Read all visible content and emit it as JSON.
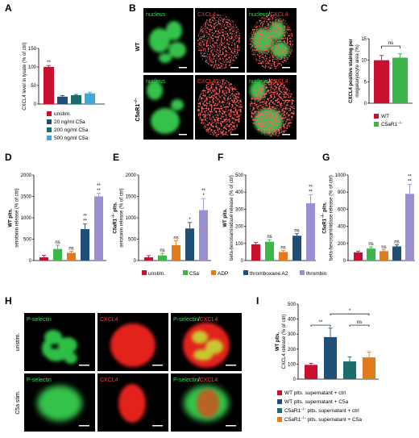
{
  "colors": {
    "unstim": "#c8102e",
    "c5a": "#3cb54a",
    "adp": "#e07b1f",
    "thromboxane": "#1f4e79",
    "thrombin": "#9a8fd0",
    "dose20": "#1f4e79",
    "dose200": "#1b6d6d",
    "dose500": "#40a8d8",
    "micro_green": "#33c14a",
    "micro_red": "#e8262a",
    "micro_label_green": "#33dd55",
    "micro_label_red": "#ff3b30"
  },
  "panels": {
    "A": "A",
    "B": "B",
    "C": "C",
    "D": "D",
    "E": "E",
    "F": "F",
    "G": "G",
    "H": "H",
    "I": "I"
  },
  "micrograph_b": {
    "col_labels": [
      "nucleus",
      "CXCL4",
      "nucleus",
      "/",
      "CXCL4"
    ],
    "row_labels": [
      "WT",
      "C5aR1",
      "−/−"
    ]
  },
  "micrograph_h": {
    "col_labels": [
      "P-selectin",
      "CXCL4",
      "P-selectin",
      "/",
      "CXCL4"
    ],
    "row_labels": [
      "unstim.",
      "C5a stim."
    ]
  },
  "legend_D_G": [
    "unstim.",
    "C5a",
    "ADP",
    "thromboxane A2",
    "thrombin"
  ],
  "chart_data": [
    {
      "panel": "A",
      "type": "bar",
      "categories": [
        "unstim.",
        "20 ng/ml C5a",
        "200 ng/ml C5a",
        "500 ng/ml C5a"
      ],
      "values": [
        100,
        20,
        24,
        29
      ],
      "errors": [
        4,
        3,
        2,
        3
      ],
      "significance": [
        "**",
        "",
        "",
        ""
      ],
      "ylabel": "CXCL4 level in lysate (% of ctrl)",
      "ylim": [
        0,
        150
      ],
      "yticks": [
        0,
        50,
        100,
        150
      ],
      "legend": [
        "unstim.",
        "20 ng/ml C5a",
        "200 ng/ml C5a",
        "500 ng/ml C5a"
      ]
    },
    {
      "panel": "C",
      "type": "bar",
      "categories": [
        "WT",
        "C5aR1"
      ],
      "values": [
        10,
        10.6
      ],
      "errors": [
        1.1,
        0.9
      ],
      "bracket": "ns",
      "ylabel": [
        "CXCL4 positive staining per",
        "megakaryocyte area (%)"
      ],
      "ylim": [
        0,
        15
      ],
      "yticks": [
        0,
        5,
        10,
        15
      ],
      "legend": [
        "WT",
        "C5aR1"
      ]
    },
    {
      "panel": "D",
      "type": "bar",
      "categories": [
        "unstim.",
        "C5a",
        "ADP",
        "thromboxane A2",
        "thrombin"
      ],
      "values": [
        75,
        270,
        180,
        735,
        1500
      ],
      "errors": [
        45,
        90,
        40,
        120,
        70
      ],
      "significance": [
        "",
        "ns",
        "ns",
        "**\n**",
        "**\n**"
      ],
      "ylabel": [
        "WT plts.",
        "serotonin release (% of ctrl)"
      ],
      "ylim": [
        0,
        2000
      ],
      "yticks": [
        0,
        500,
        1000,
        1500,
        2000
      ]
    },
    {
      "panel": "E",
      "type": "bar",
      "categories": [
        "unstim.",
        "C5a",
        "ADP",
        "thromboxane A2",
        "thrombin"
      ],
      "values": [
        75,
        120,
        360,
        750,
        1180
      ],
      "errors": [
        40,
        50,
        100,
        140,
        270
      ],
      "significance": [
        "",
        "ns",
        "ns",
        "*",
        "**\n*"
      ],
      "ylabel": [
        "C5aR1 plts.",
        "serotonin release (% of ctrl)"
      ],
      "ylim": [
        0,
        2000
      ],
      "yticks": [
        0,
        500,
        1000,
        1500,
        2000
      ]
    },
    {
      "panel": "F",
      "type": "bar",
      "categories": [
        "unstim.",
        "C5a",
        "ADP",
        "thromboxane A2",
        "thrombin"
      ],
      "values": [
        95,
        110,
        50,
        145,
        335
      ],
      "errors": [
        10,
        12,
        8,
        12,
        50
      ],
      "significance": [
        "",
        "ns",
        "ns",
        "ns",
        "**\n**"
      ],
      "ylabel": [
        "WT plts.",
        "beta-hexosaminidase release (% of ctrl)"
      ],
      "ylim": [
        0,
        500
      ],
      "yticks": [
        0,
        100,
        200,
        300,
        400,
        500
      ]
    },
    {
      "panel": "G",
      "type": "bar",
      "categories": [
        "unstim.",
        "C5a",
        "ADP",
        "thromboxane A2",
        "thrombin"
      ],
      "values": [
        95,
        140,
        110,
        165,
        780
      ],
      "errors": [
        15,
        20,
        15,
        20,
        110
      ],
      "significance": [
        "",
        "ns",
        "ns",
        "ns",
        "**\n**"
      ],
      "ylabel": [
        "C5aR1 plts.",
        "beta-hexosaminidase release (% of ctrl)"
      ],
      "ylim": [
        0,
        1000
      ],
      "yticks": [
        0,
        200,
        400,
        600,
        800,
        1000
      ]
    },
    {
      "panel": "I",
      "type": "bar",
      "categories": [
        "WT plts. supernatant + ctrl",
        "WT plts. supernatant + C5a",
        "C5aR1 plts. supernatant + ctrl",
        "C5aR1 plts. supernatant + C5a"
      ],
      "values": [
        95,
        280,
        118,
        145
      ],
      "errors": [
        10,
        60,
        30,
        35
      ],
      "brackets": [
        {
          "from": 0,
          "to": 1,
          "label": "**"
        },
        {
          "from": 2,
          "to": 3,
          "label": "ns"
        },
        {
          "from": 1,
          "to": 3,
          "label": "*"
        }
      ],
      "ylabel": [
        "WT plts.",
        "CXCL4 release (% of ctrl)"
      ],
      "ylim": [
        0,
        500
      ],
      "yticks": [
        0,
        100,
        200,
        300,
        400,
        500
      ],
      "legend": [
        "WT plts. supernatant + ctrl",
        "WT plts. supernatant + C5a",
        "C5aR1 plts. supernatant + ctrl",
        "C5aR1 plts. supernatant + C5a"
      ]
    }
  ],
  "sup": {
    "ko": "−/−"
  }
}
